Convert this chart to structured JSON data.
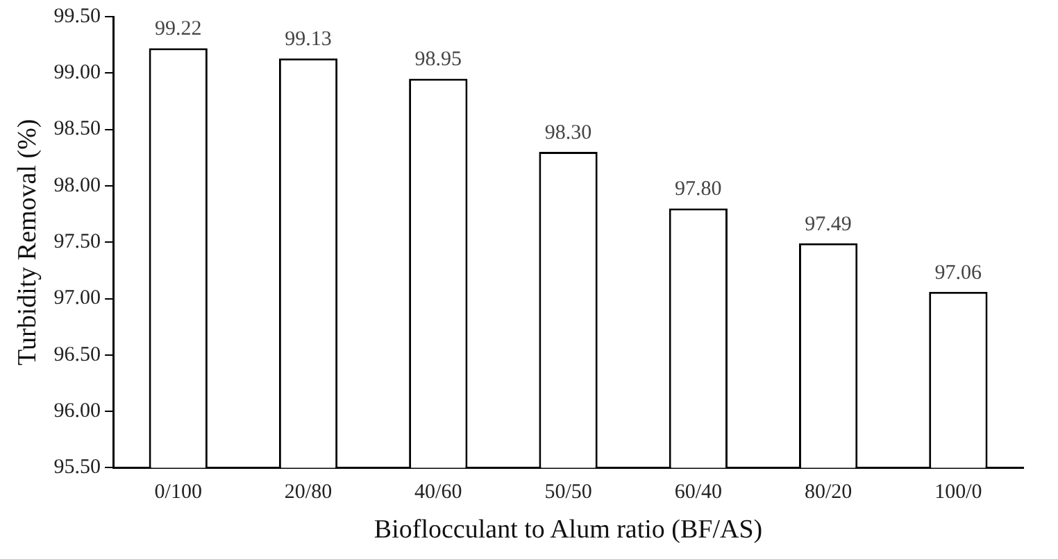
{
  "chart_data": {
    "type": "bar",
    "xlabel": "Bioflocculant to Alum ratio (BF/AS)",
    "ylabel": "Turbidity Removal (%)",
    "categories": [
      "0/100",
      "20/80",
      "40/60",
      "50/50",
      "60/40",
      "80/20",
      "100/0"
    ],
    "values": [
      99.22,
      99.13,
      98.95,
      98.3,
      97.8,
      97.49,
      97.06
    ],
    "color": "#ffffff",
    "ylim": [
      95.5,
      99.5
    ],
    "yticks": [
      {
        "value": 95.5,
        "label": "95.50"
      },
      {
        "value": 96,
        "label": "96.00"
      },
      {
        "value": 96.5,
        "label": "96.50"
      },
      {
        "value": 97,
        "label": "97.00"
      },
      {
        "value": 97.5,
        "label": "97.50"
      },
      {
        "value": 98,
        "label": "98.00"
      },
      {
        "value": 98.5,
        "label": "98.50"
      },
      {
        "value": 99,
        "label": "99.00"
      },
      {
        "value": 99.5,
        "label": "99.50"
      }
    ],
    "value_labels": [
      "99.22",
      "99.13",
      "98.95",
      "98.30",
      "97.80",
      "97.49",
      "97.06"
    ],
    "grid": false,
    "legend": false
  }
}
